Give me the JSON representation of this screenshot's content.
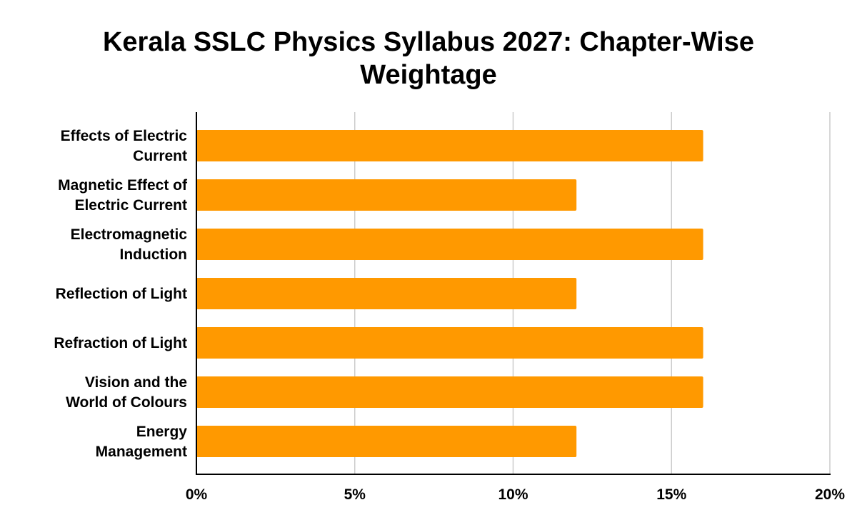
{
  "chart_data": {
    "type": "bar",
    "orientation": "horizontal",
    "title_lines": [
      "Kerala SSLC Physics Syllabus 2027: Chapter-Wise",
      "Weightage"
    ],
    "categories": [
      [
        "Effects of Electric",
        "Current"
      ],
      [
        "Magnetic Effect of",
        "Electric Current"
      ],
      [
        "Electromagnetic",
        "Induction"
      ],
      [
        "Reflection of Light"
      ],
      [
        "Refraction of Light"
      ],
      [
        "Vision and the",
        "World of Colours"
      ],
      [
        "Energy",
        "Management"
      ]
    ],
    "values": [
      16,
      12,
      16,
      12,
      16,
      16,
      12
    ],
    "value_unit": "%",
    "xlim": [
      0,
      20
    ],
    "x_ticks": [
      0,
      5,
      10,
      15,
      20
    ],
    "x_tick_labels": [
      "0%",
      "5%",
      "10%",
      "15%",
      "20%"
    ],
    "grid": true,
    "legend": "none",
    "colors": {
      "bar": "#ff9900",
      "grid": "#cccccc",
      "axis": "#000000"
    }
  }
}
